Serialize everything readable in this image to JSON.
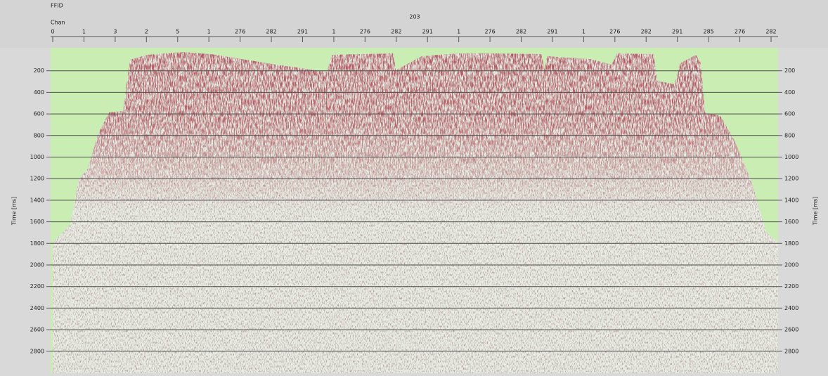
{
  "header": {
    "ffid_label": "FFID",
    "chan_label": "Chan",
    "ffid_value": "203"
  },
  "channel_labels": [
    "0",
    "1",
    "3",
    "2",
    "5",
    "1",
    "276",
    "282",
    "291",
    "1",
    "276",
    "282",
    "291",
    "1",
    "276",
    "282",
    "291",
    "1",
    "276",
    "282",
    "291",
    "285",
    "276",
    "282"
  ],
  "time_axis": {
    "title": "Time [ms]",
    "ticks": [
      200,
      400,
      600,
      800,
      1000,
      1200,
      1400,
      1600,
      1800,
      2000,
      2200,
      2400,
      2600,
      2800
    ]
  }
}
